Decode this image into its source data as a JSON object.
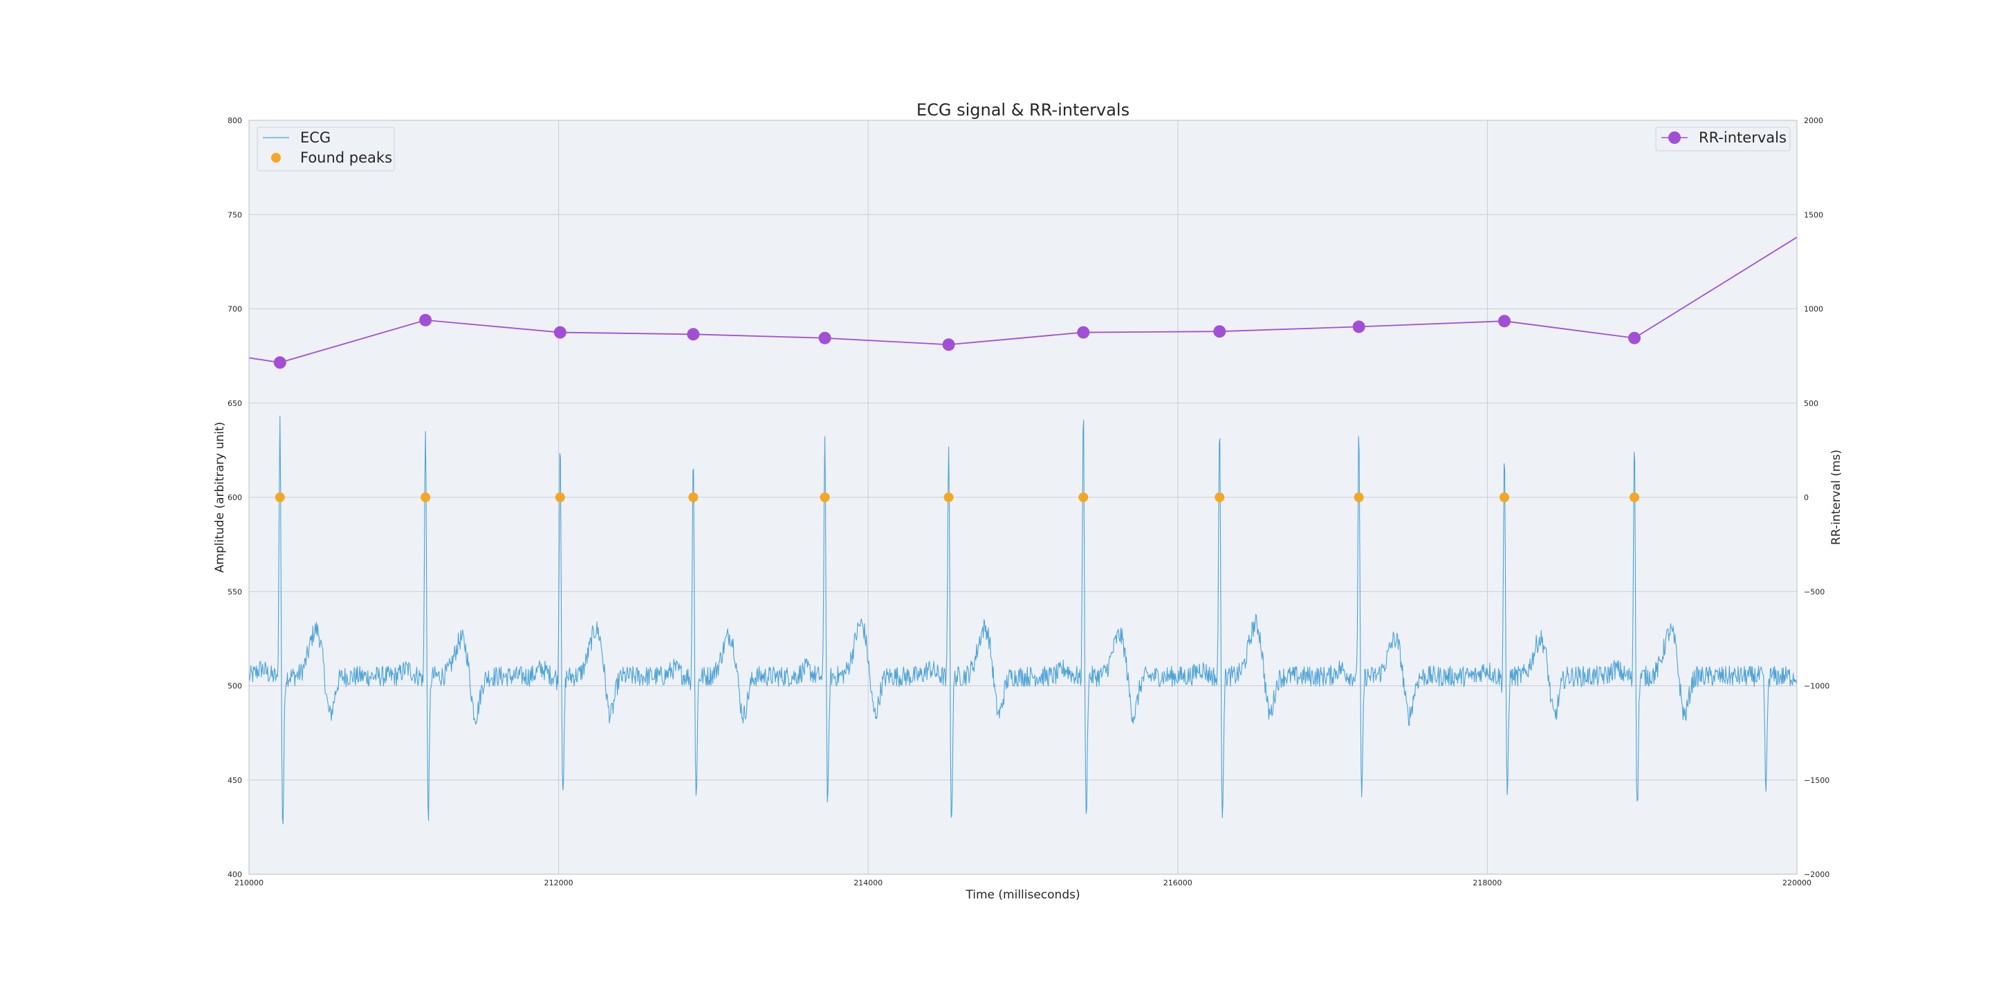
{
  "chart_data": {
    "type": "line",
    "title": "ECG signal & RR-intervals",
    "xlabel": "Time (milliseconds)",
    "ylabel": "Amplitude (arbitrary unit)",
    "ylabel_right": "RR-interval (ms)",
    "xlim": [
      210000,
      220000
    ],
    "ylim": [
      400,
      800
    ],
    "ylim_right": [
      -2000,
      2000
    ],
    "x_ticks": [
      210000,
      212000,
      214000,
      216000,
      218000,
      220000
    ],
    "x_tick_labels": [
      "210000",
      "212000",
      "214000",
      "216000",
      "218000",
      "220000"
    ],
    "y_ticks": [
      400,
      450,
      500,
      550,
      600,
      650,
      700,
      750,
      800
    ],
    "y_tick_labels": [
      "400",
      "450",
      "500",
      "550",
      "600",
      "650",
      "700",
      "750",
      "800"
    ],
    "y_right_ticks": [
      -2000,
      -1500,
      -1000,
      -500,
      0,
      500,
      1000,
      1500,
      2000
    ],
    "y_right_tick_labels": [
      "−2000",
      "−1500",
      "−1000",
      "−500",
      "0",
      "500",
      "1000",
      "1500",
      "2000"
    ],
    "grid": true,
    "legend_left_placement": "upper-left",
    "legend_right_placement": "upper-right",
    "series": [
      {
        "name": "ECG",
        "axis": "left",
        "kind": "line",
        "color": "#4ca3d8",
        "baseline": 505,
        "r_peak_times": [
          210200,
          211140,
          212010,
          212870,
          213720,
          214520,
          215390,
          216270,
          217170,
          218110,
          218950
        ],
        "r_peak_heights": [
          645,
          643,
          635,
          627,
          637,
          635,
          650,
          645,
          640,
          628,
          634
        ],
        "s_trough_heights": [
          424,
          430,
          438,
          440,
          435,
          428,
          428,
          432,
          437,
          441,
          433
        ],
        "t_wave_heights": [
          530,
          525,
          530,
          527,
          533,
          531,
          527,
          533,
          525,
          525,
          529
        ],
        "extra_trough": {
          "x": 219800,
          "y": 444
        }
      },
      {
        "name": "Found peaks",
        "axis": "left",
        "kind": "scatter",
        "color": "#f5a623",
        "x": [
          210200,
          211140,
          212010,
          212870,
          213720,
          214520,
          215390,
          216270,
          217170,
          218110,
          218950
        ],
        "y": [
          600,
          600,
          600,
          600,
          600,
          600,
          600,
          600,
          600,
          600,
          600
        ]
      },
      {
        "name": "RR-intervals",
        "axis": "right",
        "kind": "line-marker",
        "color": "#a24fd6",
        "x": [
          210000,
          210200,
          211140,
          212010,
          212870,
          213720,
          214520,
          215390,
          216270,
          217170,
          218110,
          218950,
          220000
        ],
        "y": [
          740,
          715,
          940,
          875,
          865,
          845,
          810,
          875,
          880,
          905,
          935,
          845,
          1380
        ],
        "marker_mask": [
          false,
          true,
          true,
          true,
          true,
          true,
          true,
          true,
          true,
          true,
          true,
          true,
          false
        ]
      }
    ]
  }
}
